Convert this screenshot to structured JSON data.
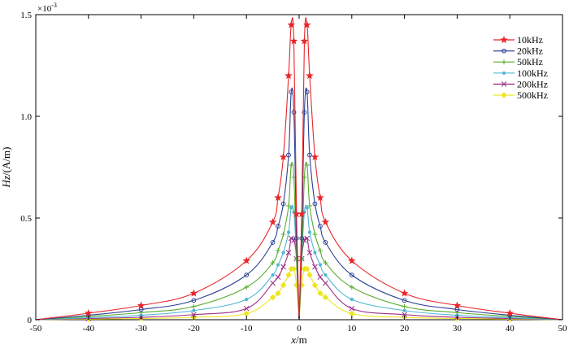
{
  "chart_data": {
    "type": "line",
    "title": "",
    "xlabel_italic": "x",
    "xlabel_unit": "/m",
    "ylabel_italic": "Hz",
    "ylabel_unit": "/(A/m)",
    "y_multiplier_text": "×10",
    "y_multiplier_exp": "-3",
    "xlim": [
      -50,
      50
    ],
    "ylim": [
      0,
      1.5
    ],
    "grid": false,
    "legend_position": "top-right",
    "x_ticks": [
      -50,
      -40,
      -30,
      -20,
      -10,
      0,
      10,
      20,
      30,
      40,
      50
    ],
    "y_ticks": [
      0,
      0.5,
      1.0,
      1.5
    ],
    "x_tick_labels": [
      "-50",
      "-40",
      "-30",
      "-20",
      "-10",
      "0",
      "10",
      "20",
      "30",
      "40",
      "50"
    ],
    "y_tick_labels": [
      "0",
      "0.5",
      "1.0",
      "1.5"
    ],
    "x": [
      0,
      0.5,
      1.0,
      1.5,
      2.0,
      3.0,
      4.0,
      5.0,
      10,
      20,
      30,
      40,
      50
    ],
    "series": [
      {
        "name": "10kHz",
        "color": "#e8262a",
        "marker": "star",
        "values": [
          0.0,
          0.52,
          1.37,
          1.45,
          1.2,
          0.8,
          0.6,
          0.48,
          0.29,
          0.13,
          0.07,
          0.032,
          0.0
        ]
      },
      {
        "name": "20kHz",
        "color": "#2c3f93",
        "marker": "circle",
        "values": [
          0.0,
          0.4,
          1.02,
          1.12,
          0.81,
          0.57,
          0.46,
          0.38,
          0.22,
          0.095,
          0.05,
          0.022,
          0.0
        ]
      },
      {
        "name": "50kHz",
        "color": "#5aab2e",
        "marker": "plus",
        "values": [
          0.0,
          0.3,
          0.7,
          0.76,
          0.56,
          0.42,
          0.34,
          0.28,
          0.16,
          0.065,
          0.035,
          0.016,
          0.0
        ]
      },
      {
        "name": "100kHz",
        "color": "#4fb6d6",
        "marker": "point",
        "values": [
          0.0,
          0.3,
          0.53,
          0.55,
          0.43,
          0.33,
          0.27,
          0.22,
          0.1,
          0.045,
          0.022,
          0.01,
          0.0
        ]
      },
      {
        "name": "200kHz",
        "color": "#9c2f86",
        "marker": "x",
        "values": [
          0.0,
          0.3,
          0.39,
          0.4,
          0.33,
          0.26,
          0.21,
          0.18,
          0.055,
          0.025,
          0.012,
          0.006,
          0.0
        ]
      },
      {
        "name": "500kHz",
        "color": "#ede51f",
        "marker": "diamond",
        "values": [
          0.0,
          0.17,
          0.25,
          0.25,
          0.22,
          0.17,
          0.13,
          0.11,
          0.03,
          0.012,
          0.006,
          0.003,
          0.0
        ]
      }
    ]
  }
}
